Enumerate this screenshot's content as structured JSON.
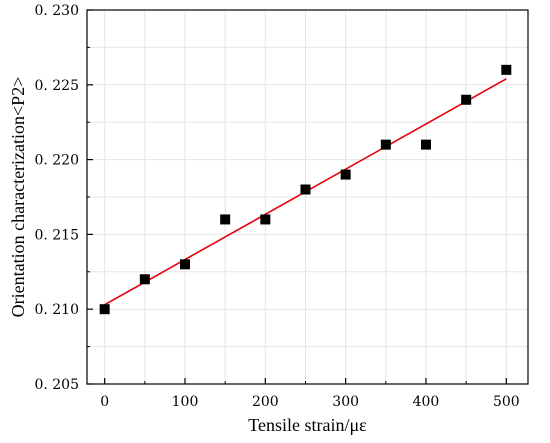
{
  "chart_data": {
    "type": "scatter",
    "title": "",
    "xlabel": "Tensile strain/με",
    "ylabel": "Orientation characterization<P2>",
    "xlim": [
      -22,
      527
    ],
    "ylim": [
      0.205,
      0.23
    ],
    "grid": true,
    "x_ticks": [
      0,
      100,
      200,
      300,
      400,
      500
    ],
    "x_tick_labels": [
      "0",
      "100",
      "200",
      "300",
      "400",
      "500"
    ],
    "y_ticks": [
      0.205,
      0.21,
      0.215,
      0.22,
      0.225,
      0.23
    ],
    "y_tick_labels": [
      "0. 205",
      "0. 210",
      "0. 215",
      "0. 220",
      "0. 225",
      "0. 230"
    ],
    "series": [
      {
        "marker": "square",
        "color": "#000000",
        "x": [
          0,
          50,
          100,
          150,
          200,
          250,
          300,
          350,
          400,
          450,
          500
        ],
        "y": [
          0.21,
          0.212,
          0.213,
          0.216,
          0.216,
          0.218,
          0.219,
          0.221,
          0.221,
          0.224,
          0.226
        ]
      }
    ],
    "fit_line": {
      "type": "linear",
      "color": "#e8000b",
      "x": [
        0,
        500
      ],
      "y": [
        0.2103,
        0.2254
      ]
    }
  }
}
